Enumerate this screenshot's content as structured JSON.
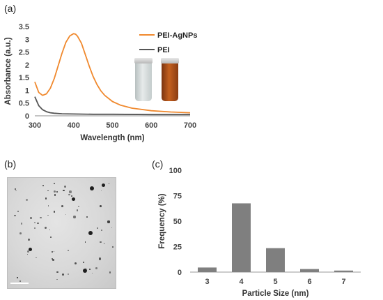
{
  "panels": {
    "a": "(a)",
    "b": "(b)",
    "c": "(c)"
  },
  "colors": {
    "agnp": "#f0892e",
    "pei": "#555555",
    "bar": "#7f7f7f",
    "vial_clear": "#cfd6d6",
    "vial_brown": "#b0501a"
  },
  "chart_data": [
    {
      "type": "line",
      "panel": "(a)",
      "xlabel": "Wavelength (nm)",
      "ylabel": "Absorbance (a.u.)",
      "xlim": [
        300,
        700
      ],
      "ylim": [
        0,
        3.5
      ],
      "xticks": [
        300,
        400,
        500,
        600,
        700
      ],
      "yticks": [
        0,
        0.5,
        1,
        1.5,
        2,
        2.5,
        3,
        3.5
      ],
      "ytick_labels": [
        "0",
        "0.5",
        "1",
        "1.5",
        "2",
        "2.5",
        "3",
        "3.5"
      ],
      "legend_position": "top-right",
      "series": [
        {
          "name": "PEI-AgNPs",
          "color": "#f0892e",
          "x": [
            300,
            310,
            320,
            330,
            340,
            350,
            360,
            370,
            380,
            390,
            400,
            405,
            410,
            420,
            430,
            440,
            450,
            460,
            470,
            480,
            500,
            520,
            550,
            600,
            650,
            700
          ],
          "y": [
            1.33,
            0.92,
            0.8,
            0.86,
            1.08,
            1.46,
            1.95,
            2.45,
            2.88,
            3.13,
            3.22,
            3.2,
            3.12,
            2.85,
            2.4,
            1.95,
            1.55,
            1.23,
            0.98,
            0.8,
            0.56,
            0.42,
            0.3,
            0.2,
            0.15,
            0.12
          ]
        },
        {
          "name": "PEI",
          "color": "#555555",
          "x": [
            300,
            310,
            320,
            330,
            340,
            350,
            370,
            400,
            450,
            500,
            600,
            700
          ],
          "y": [
            0.75,
            0.4,
            0.24,
            0.16,
            0.12,
            0.1,
            0.08,
            0.07,
            0.06,
            0.06,
            0.05,
            0.05
          ]
        }
      ]
    },
    {
      "type": "bar",
      "panel": "(c)",
      "xlabel": "Particle Size (nm)",
      "ylabel": "Frequency (%)",
      "categories": [
        "3",
        "4",
        "5",
        "6",
        "7"
      ],
      "values": [
        4.5,
        67.5,
        23.5,
        3,
        1.5
      ],
      "ylim": [
        0,
        100
      ],
      "yticks": [
        0,
        25,
        50,
        75,
        100
      ],
      "ytick_labels": [
        "0",
        "25",
        "50",
        "75",
        "100"
      ],
      "color": "#7f7f7f"
    }
  ]
}
